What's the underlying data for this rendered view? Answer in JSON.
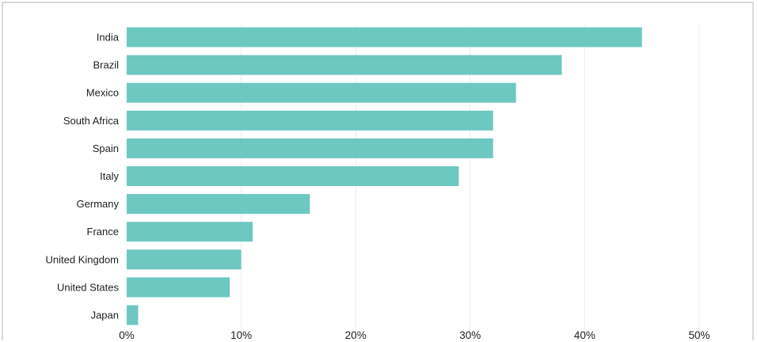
{
  "chart_data": {
    "type": "bar",
    "orientation": "horizontal",
    "categories": [
      "India",
      "Brazil",
      "Mexico",
      "South Africa",
      "Spain",
      "Italy",
      "Germany",
      "France",
      "United Kingdom",
      "United States",
      "Japan"
    ],
    "values": [
      45,
      38,
      34,
      32,
      32,
      29,
      16,
      11,
      10,
      9,
      1
    ],
    "xlim": [
      0,
      50
    ],
    "x_ticks": [
      0,
      10,
      20,
      30,
      40,
      50
    ],
    "x_tick_labels": [
      "0%",
      "10%",
      "20%",
      "30%",
      "40%",
      "50%"
    ],
    "grid": "vertical",
    "bar_color": "#6dc8c1"
  }
}
